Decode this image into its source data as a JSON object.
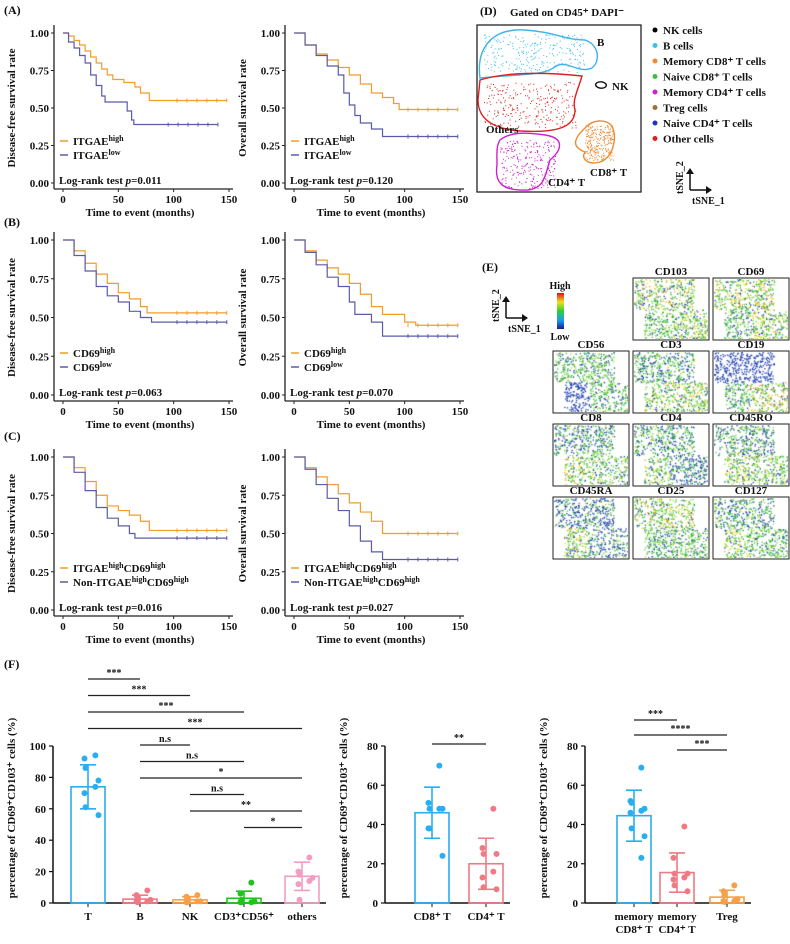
{
  "panel_labels": {
    "A": "(A)",
    "B": "(B)",
    "C": "(C)",
    "D": "(D)",
    "E": "(E)",
    "F": "(F)"
  },
  "chart_data": [
    {
      "type": "line",
      "panel": "A",
      "ylabel": "Disease-free survival rate",
      "xlabel": "Time to event (months)",
      "xlim": [
        0,
        150
      ],
      "ylim": [
        0,
        1
      ],
      "xticks": [
        "0",
        "50",
        "100",
        "150"
      ],
      "yticks": [
        "0.00",
        "0.25",
        "0.50",
        "0.75",
        "1.00"
      ],
      "series": [
        {
          "name": "ITGAE",
          "sup": "high",
          "color": "#f39c2b",
          "points": [
            [
              0,
              1
            ],
            [
              5,
              0.98
            ],
            [
              10,
              0.95
            ],
            [
              15,
              0.92
            ],
            [
              20,
              0.88
            ],
            [
              25,
              0.84
            ],
            [
              30,
              0.8
            ],
            [
              35,
              0.76
            ],
            [
              40,
              0.72
            ],
            [
              45,
              0.69
            ],
            [
              55,
              0.67
            ],
            [
              65,
              0.64
            ],
            [
              70,
              0.6
            ],
            [
              78,
              0.55
            ],
            [
              148,
              0.55
            ]
          ]
        },
        {
          "name": "ITGAE",
          "sup": "low",
          "color": "#5b5ba8",
          "points": [
            [
              0,
              1
            ],
            [
              5,
              0.94
            ],
            [
              10,
              0.9
            ],
            [
              15,
              0.85
            ],
            [
              20,
              0.8
            ],
            [
              25,
              0.72
            ],
            [
              30,
              0.65
            ],
            [
              35,
              0.58
            ],
            [
              38,
              0.54
            ],
            [
              55,
              0.54
            ],
            [
              58,
              0.48
            ],
            [
              62,
              0.42
            ],
            [
              64,
              0.39
            ],
            [
              140,
              0.39
            ]
          ]
        }
      ],
      "annotation": "Log-rank test ",
      "p_label": "p",
      "p_value": "=0.011"
    },
    {
      "type": "line",
      "panel": "A",
      "ylabel": "Overall survival rate",
      "xlabel": "Time to event (months)",
      "xlim": [
        0,
        150
      ],
      "ylim": [
        0,
        1
      ],
      "xticks": [
        "0",
        "50",
        "100",
        "150"
      ],
      "yticks": [
        "0.00",
        "0.25",
        "0.50",
        "0.75",
        "1.00"
      ],
      "series": [
        {
          "name": "ITGAE",
          "sup": "high",
          "color": "#f39c2b",
          "points": [
            [
              0,
              1
            ],
            [
              10,
              0.92
            ],
            [
              20,
              0.86
            ],
            [
              30,
              0.82
            ],
            [
              40,
              0.77
            ],
            [
              50,
              0.72
            ],
            [
              60,
              0.66
            ],
            [
              70,
              0.6
            ],
            [
              80,
              0.57
            ],
            [
              90,
              0.53
            ],
            [
              95,
              0.49
            ],
            [
              148,
              0.49
            ]
          ]
        },
        {
          "name": "ITGAE",
          "sup": "low",
          "color": "#5b5ba8",
          "points": [
            [
              0,
              1
            ],
            [
              10,
              0.92
            ],
            [
              20,
              0.85
            ],
            [
              30,
              0.78
            ],
            [
              40,
              0.72
            ],
            [
              45,
              0.6
            ],
            [
              50,
              0.52
            ],
            [
              55,
              0.45
            ],
            [
              60,
              0.4
            ],
            [
              70,
              0.36
            ],
            [
              80,
              0.31
            ],
            [
              148,
              0.31
            ]
          ]
        }
      ],
      "annotation": "Log-rank test ",
      "p_label": "p",
      "p_value": "=0.120"
    },
    {
      "type": "line",
      "panel": "B",
      "ylabel": "Disease-free survival rate",
      "xlabel": "Time to event (months)",
      "xlim": [
        0,
        150
      ],
      "ylim": [
        0,
        1
      ],
      "xticks": [
        "0",
        "50",
        "100",
        "150"
      ],
      "yticks": [
        "0.00",
        "0.25",
        "0.50",
        "0.75",
        "1.00"
      ],
      "series": [
        {
          "name": "CD69",
          "sup": "high",
          "color": "#f39c2b",
          "points": [
            [
              0,
              1
            ],
            [
              10,
              0.93
            ],
            [
              20,
              0.85
            ],
            [
              30,
              0.78
            ],
            [
              40,
              0.72
            ],
            [
              50,
              0.66
            ],
            [
              60,
              0.62
            ],
            [
              70,
              0.57
            ],
            [
              76,
              0.53
            ],
            [
              148,
              0.53
            ]
          ]
        },
        {
          "name": "CD69",
          "sup": "low",
          "color": "#5b5ba8",
          "points": [
            [
              0,
              1
            ],
            [
              10,
              0.9
            ],
            [
              20,
              0.8
            ],
            [
              30,
              0.7
            ],
            [
              40,
              0.64
            ],
            [
              50,
              0.6
            ],
            [
              60,
              0.54
            ],
            [
              70,
              0.5
            ],
            [
              80,
              0.47
            ],
            [
              148,
              0.47
            ]
          ]
        }
      ],
      "annotation": "Log-rank test ",
      "p_label": "p",
      "p_value": "=0.063"
    },
    {
      "type": "line",
      "panel": "B",
      "ylabel": "Overall survival rate",
      "xlabel": "Time to event (months)",
      "xlim": [
        0,
        150
      ],
      "ylim": [
        0,
        1
      ],
      "xticks": [
        "0",
        "50",
        "100",
        "150"
      ],
      "yticks": [
        "0.00",
        "0.25",
        "0.50",
        "0.75",
        "1.00"
      ],
      "series": [
        {
          "name": "CD69",
          "sup": "high",
          "color": "#f39c2b",
          "points": [
            [
              0,
              1
            ],
            [
              10,
              0.93
            ],
            [
              20,
              0.87
            ],
            [
              30,
              0.82
            ],
            [
              40,
              0.78
            ],
            [
              50,
              0.72
            ],
            [
              60,
              0.65
            ],
            [
              70,
              0.57
            ],
            [
              80,
              0.52
            ],
            [
              100,
              0.47
            ],
            [
              110,
              0.45
            ],
            [
              148,
              0.45
            ]
          ]
        },
        {
          "name": "CD69",
          "sup": "low",
          "color": "#5b5ba8",
          "points": [
            [
              0,
              1
            ],
            [
              10,
              0.92
            ],
            [
              20,
              0.84
            ],
            [
              30,
              0.76
            ],
            [
              40,
              0.7
            ],
            [
              50,
              0.6
            ],
            [
              55,
              0.52
            ],
            [
              70,
              0.47
            ],
            [
              80,
              0.38
            ],
            [
              148,
              0.38
            ]
          ]
        }
      ],
      "annotation": "Log-rank test ",
      "p_label": "p",
      "p_value": "=0.070"
    },
    {
      "type": "line",
      "panel": "C",
      "ylabel": "Disease-free survival rate",
      "xlabel": "Time to event (months)",
      "xlim": [
        0,
        150
      ],
      "ylim": [
        0,
        1
      ],
      "xticks": [
        "0",
        "50",
        "100",
        "150"
      ],
      "yticks": [
        "0.00",
        "0.25",
        "0.50",
        "0.75",
        "1.00"
      ],
      "series": [
        {
          "name": "ITGAE",
          "sup": "high",
          "name2": "CD69",
          "sup2": "high",
          "color": "#f39c2b",
          "points": [
            [
              0,
              1
            ],
            [
              10,
              0.93
            ],
            [
              20,
              0.84
            ],
            [
              30,
              0.75
            ],
            [
              40,
              0.68
            ],
            [
              50,
              0.65
            ],
            [
              60,
              0.62
            ],
            [
              70,
              0.58
            ],
            [
              78,
              0.52
            ],
            [
              148,
              0.52
            ]
          ]
        },
        {
          "name": "Non-ITGAE",
          "sup": "high",
          "name2": "CD69",
          "sup2": "high",
          "color": "#5b5ba8",
          "points": [
            [
              0,
              1
            ],
            [
              10,
              0.9
            ],
            [
              20,
              0.78
            ],
            [
              30,
              0.67
            ],
            [
              40,
              0.6
            ],
            [
              50,
              0.55
            ],
            [
              60,
              0.5
            ],
            [
              65,
              0.47
            ],
            [
              148,
              0.47
            ]
          ]
        }
      ],
      "annotation": "Log-rank test ",
      "p_label": "p",
      "p_value": "=0.016"
    },
    {
      "type": "line",
      "panel": "C",
      "ylabel": "Overall survival rate",
      "xlabel": "Time to event (months)",
      "xlim": [
        0,
        150
      ],
      "ylim": [
        0,
        1
      ],
      "xticks": [
        "0",
        "50",
        "100",
        "150"
      ],
      "yticks": [
        "0.00",
        "0.25",
        "0.50",
        "0.75",
        "1.00"
      ],
      "series": [
        {
          "name": "ITGAE",
          "sup": "high",
          "name2": "CD69",
          "sup2": "high",
          "color": "#f39c2b",
          "points": [
            [
              0,
              1
            ],
            [
              10,
              0.93
            ],
            [
              20,
              0.87
            ],
            [
              30,
              0.82
            ],
            [
              40,
              0.76
            ],
            [
              50,
              0.7
            ],
            [
              60,
              0.64
            ],
            [
              70,
              0.58
            ],
            [
              80,
              0.5
            ],
            [
              148,
              0.5
            ]
          ]
        },
        {
          "name": "Non-ITGAE",
          "sup": "high",
          "name2": "CD69",
          "sup2": "high",
          "color": "#5b5ba8",
          "points": [
            [
              0,
              1
            ],
            [
              10,
              0.92
            ],
            [
              20,
              0.82
            ],
            [
              30,
              0.73
            ],
            [
              40,
              0.65
            ],
            [
              50,
              0.55
            ],
            [
              60,
              0.45
            ],
            [
              70,
              0.38
            ],
            [
              80,
              0.33
            ],
            [
              148,
              0.33
            ]
          ]
        }
      ],
      "annotation": "Log-rank test ",
      "p_label": "p",
      "p_value": "=0.027"
    },
    {
      "type": "bar",
      "panel": "F",
      "ylabel": "percentage of CD69⁺CD103⁺ cells (%)",
      "ylim": [
        0,
        100
      ],
      "yticks": [
        "0",
        "20",
        "40",
        "60",
        "80",
        "100"
      ],
      "categories": [
        "T",
        "B",
        "NK",
        "CD3⁺CD56⁺",
        "others"
      ],
      "colors": [
        "#29aef0",
        "#f07a84",
        "#f5a04a",
        "#1fc21f",
        "#f29ec4"
      ],
      "means": [
        74,
        2.5,
        2,
        3,
        17
      ],
      "sd": [
        14,
        2.5,
        2,
        4.5,
        9
      ],
      "points": [
        [
          94,
          92,
          86,
          78,
          74,
          70,
          61,
          56
        ],
        [
          8,
          5,
          3,
          2,
          1,
          1,
          0.5
        ],
        [
          5,
          4,
          2,
          1,
          1,
          0.5,
          0.5
        ],
        [
          13,
          6,
          2,
          1,
          0.5,
          0.5,
          0.5
        ],
        [
          29,
          20,
          18,
          16,
          14,
          12,
          2
        ]
      ],
      "significance": [
        [
          0,
          1,
          "***"
        ],
        [
          0,
          2,
          "***"
        ],
        [
          0,
          3,
          "***"
        ],
        [
          0,
          4,
          "***"
        ],
        [
          1,
          2,
          "n.s"
        ],
        [
          1,
          3,
          "n.s"
        ],
        [
          1,
          4,
          "*"
        ],
        [
          2,
          3,
          "n.s"
        ],
        [
          2,
          4,
          "**"
        ],
        [
          3,
          4,
          "*"
        ]
      ]
    },
    {
      "type": "bar",
      "panel": "F",
      "ylabel": "percentage of CD69⁺CD103⁺ cells (%)",
      "ylim": [
        0,
        80
      ],
      "yticks": [
        "0",
        "20",
        "40",
        "60",
        "80"
      ],
      "categories": [
        "CD8⁺ T",
        "CD4⁺ T"
      ],
      "colors": [
        "#29aef0",
        "#f07a84"
      ],
      "means": [
        46,
        20
      ],
      "sd": [
        13,
        13
      ],
      "points": [
        [
          70,
          51,
          48,
          48,
          48,
          38,
          38,
          24
        ],
        [
          48,
          28,
          25,
          25,
          16,
          13,
          8,
          7
        ]
      ],
      "significance": [
        [
          0,
          1,
          "**"
        ]
      ]
    },
    {
      "type": "bar",
      "panel": "F",
      "ylabel": "percentage of CD69⁺CD103⁺ cells (%)",
      "ylim": [
        0,
        80
      ],
      "yticks": [
        "0",
        "20",
        "40",
        "60",
        "80"
      ],
      "categories": [
        "memory CD8⁺ T",
        "memory CD4⁺ T",
        "Treg"
      ],
      "colors": [
        "#29aef0",
        "#f07a84",
        "#f5a04a"
      ],
      "means": [
        44.5,
        15.5,
        3
      ],
      "sd": [
        13,
        10,
        3.5
      ],
      "points": [
        [
          69,
          52,
          51,
          48,
          47,
          46,
          38,
          34,
          23
        ],
        [
          39,
          23,
          15,
          15,
          13,
          12,
          9,
          6
        ],
        [
          9,
          6,
          4,
          2,
          1,
          1,
          0.5
        ]
      ],
      "significance": [
        [
          0,
          1,
          "***"
        ],
        [
          0,
          2,
          "****"
        ],
        [
          1,
          2,
          "***"
        ]
      ]
    }
  ],
  "tsne": {
    "title": "Gated on CD45⁺ DAPI⁻",
    "legend": [
      {
        "label": "NK cells",
        "color": "#000000"
      },
      {
        "label": "B cells",
        "color": "#3cc0ea"
      },
      {
        "label": "Memory CD8⁺ T cells",
        "color": "#f08a30"
      },
      {
        "label": "Naive CD8⁺ T cells",
        "color": "#3cc040"
      },
      {
        "label": "Memory CD4⁺ T cells",
        "color": "#cc22cc"
      },
      {
        "label": "Treg cells",
        "color": "#a0703a"
      },
      {
        "label": "Naive CD4⁺ T cells",
        "color": "#2030c0"
      },
      {
        "label": "Other cells",
        "color": "#e02020"
      }
    ],
    "clusters": [
      {
        "label": "B",
        "color": "#3cb4e6"
      },
      {
        "label": "Others",
        "color": "#e02020"
      },
      {
        "label": "NK",
        "color": "#111111"
      },
      {
        "label": "CD8⁺ T",
        "color": "#f08a30"
      },
      {
        "label": "CD4⁺ T",
        "color": "#cc22cc"
      }
    ],
    "axis_x": "tSNE_1",
    "axis_y": "tSNE_2"
  },
  "heatmaps": {
    "scale_high": "High",
    "scale_low": "Low",
    "axis_x": "tSNE_1",
    "axis_y": "tSNE_2",
    "markers": [
      "CD103",
      "CD69",
      "CD56",
      "CD3",
      "CD19",
      "CD8",
      "CD4",
      "CD45RO",
      "CD45RA",
      "CD25",
      "CD127"
    ]
  }
}
